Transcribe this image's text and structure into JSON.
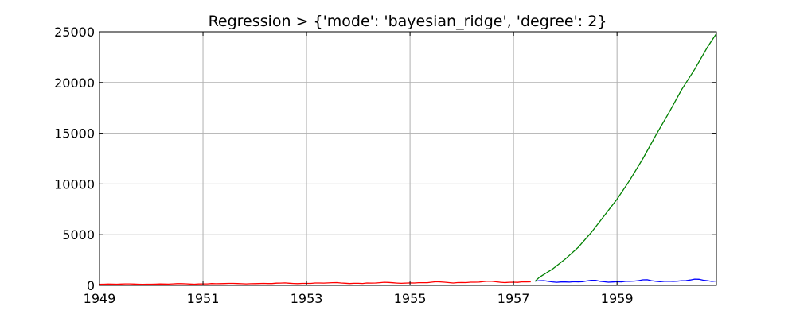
{
  "chart_data": {
    "type": "line",
    "title": "Regression > {'mode': 'bayesian_ridge', 'degree': 2}",
    "xlabel": "",
    "ylabel": "",
    "xlim": [
      1949.0,
      1960.92
    ],
    "ylim": [
      0,
      25000
    ],
    "grid": true,
    "x_ticks": [
      {
        "value": 1949,
        "label": "1949"
      },
      {
        "value": 1951,
        "label": "1951"
      },
      {
        "value": 1953,
        "label": "1953"
      },
      {
        "value": 1955,
        "label": "1955"
      },
      {
        "value": 1957,
        "label": "1957"
      },
      {
        "value": 1959,
        "label": "1959"
      }
    ],
    "y_ticks": [
      {
        "value": 0,
        "label": "0"
      },
      {
        "value": 5000,
        "label": "5000"
      },
      {
        "value": 10000,
        "label": "10000"
      },
      {
        "value": 15000,
        "label": "15000"
      },
      {
        "value": 20000,
        "label": "20000"
      },
      {
        "value": 25000,
        "label": "25000"
      }
    ],
    "series": [
      {
        "color": "#ff0000",
        "x": [
          1949.0,
          1949.083,
          1949.167,
          1949.25,
          1949.333,
          1949.417,
          1949.5,
          1949.583,
          1949.667,
          1949.75,
          1949.833,
          1949.917,
          1950.0,
          1950.083,
          1950.167,
          1950.25,
          1950.333,
          1950.417,
          1950.5,
          1950.583,
          1950.667,
          1950.75,
          1950.833,
          1950.917,
          1951.0,
          1951.083,
          1951.167,
          1951.25,
          1951.333,
          1951.417,
          1951.5,
          1951.583,
          1951.667,
          1951.75,
          1951.833,
          1951.917,
          1952.0,
          1952.083,
          1952.167,
          1952.25,
          1952.333,
          1952.417,
          1952.5,
          1952.583,
          1952.667,
          1952.75,
          1952.833,
          1952.917,
          1953.0,
          1953.083,
          1953.167,
          1953.25,
          1953.333,
          1953.417,
          1953.5,
          1953.583,
          1953.667,
          1953.75,
          1953.833,
          1953.917,
          1954.0,
          1954.083,
          1954.167,
          1954.25,
          1954.333,
          1954.417,
          1954.5,
          1954.583,
          1954.667,
          1954.75,
          1954.833,
          1954.917,
          1955.0,
          1955.083,
          1955.167,
          1955.25,
          1955.333,
          1955.417,
          1955.5,
          1955.583,
          1955.667,
          1955.75,
          1955.833,
          1955.917,
          1956.0,
          1956.083,
          1956.167,
          1956.25,
          1956.333,
          1956.417,
          1956.5,
          1956.583,
          1956.667,
          1956.75,
          1956.833,
          1956.917,
          1957.0,
          1957.083,
          1957.167,
          1957.25,
          1957.333
        ],
        "y": [
          112,
          118,
          132,
          129,
          121,
          135,
          148,
          148,
          136,
          119,
          104,
          118,
          115,
          126,
          141,
          135,
          125,
          149,
          170,
          170,
          158,
          133,
          114,
          140,
          145,
          150,
          178,
          163,
          172,
          178,
          199,
          199,
          184,
          162,
          146,
          166,
          171,
          180,
          193,
          181,
          183,
          218,
          230,
          242,
          209,
          191,
          172,
          194,
          196,
          196,
          236,
          235,
          229,
          243,
          264,
          272,
          237,
          211,
          180,
          201,
          204,
          188,
          235,
          227,
          234,
          264,
          302,
          293,
          259,
          229,
          203,
          229,
          242,
          233,
          267,
          269,
          270,
          315,
          364,
          347,
          312,
          274,
          237,
          278,
          284,
          277,
          317,
          313,
          318,
          374,
          413,
          405,
          355,
          306,
          271,
          306,
          315,
          301,
          356,
          348,
          355
        ]
      },
      {
        "color": "#0000ff",
        "x": [
          1957.417,
          1957.5,
          1957.583,
          1957.667,
          1957.75,
          1957.833,
          1957.917,
          1958.0,
          1958.083,
          1958.167,
          1958.25,
          1958.333,
          1958.417,
          1958.5,
          1958.583,
          1958.667,
          1958.75,
          1958.833,
          1958.917,
          1959.0,
          1959.083,
          1959.167,
          1959.25,
          1959.333,
          1959.417,
          1959.5,
          1959.583,
          1959.667,
          1959.75,
          1959.833,
          1959.917,
          1960.0,
          1960.083,
          1960.167,
          1960.25,
          1960.333,
          1960.417,
          1960.5,
          1960.583,
          1960.667,
          1960.75,
          1960.833,
          1960.917
        ],
        "y": [
          422,
          465,
          467,
          404,
          347,
          305,
          336,
          340,
          318,
          362,
          348,
          363,
          435,
          491,
          505,
          404,
          359,
          310,
          337,
          360,
          342,
          406,
          396,
          420,
          472,
          548,
          559,
          463,
          407,
          362,
          405,
          417,
          391,
          419,
          461,
          472,
          535,
          622,
          606,
          508,
          461,
          390,
          432
        ]
      },
      {
        "color": "#008000",
        "x": [
          1957.417,
          1957.5,
          1957.75,
          1958.0,
          1958.25,
          1958.5,
          1958.75,
          1959.0,
          1959.25,
          1959.5,
          1959.75,
          1960.0,
          1960.25,
          1960.5,
          1960.75,
          1960.917
        ],
        "y": [
          400,
          800,
          1600,
          2600,
          3750,
          5200,
          6850,
          8500,
          10400,
          12500,
          14800,
          17000,
          19300,
          21300,
          23500,
          24800
        ]
      }
    ]
  }
}
